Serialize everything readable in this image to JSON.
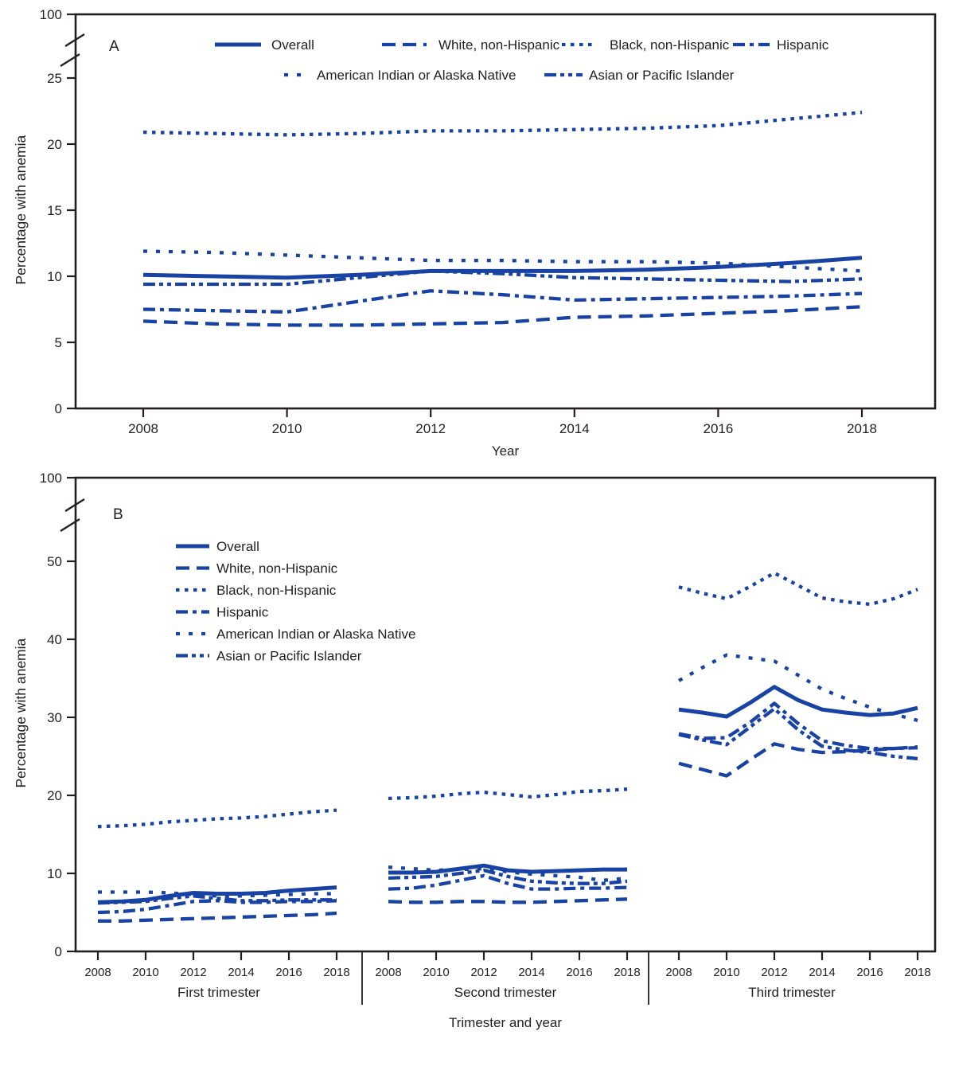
{
  "colors": {
    "line_blue": "#1843a5",
    "ink": "#231f20",
    "background": "#ffffff"
  },
  "chart_data": [
    {
      "panel_label": "A",
      "type": "line",
      "ylabel": "Percentage with anemia",
      "xlabel": "Year",
      "y_break_label": "100",
      "y_ticks": [
        25,
        20,
        15,
        10,
        5,
        0
      ],
      "x": [
        2008,
        2009,
        2010,
        2011,
        2012,
        2013,
        2014,
        2015,
        2016,
        2017,
        2018
      ],
      "x_tick_labels": [
        "2008",
        "2010",
        "2012",
        "2014",
        "2016",
        "2018"
      ],
      "legend_rows": [
        [
          0,
          1,
          2,
          3
        ],
        [
          4,
          5
        ]
      ],
      "series": [
        {
          "name": "Overall",
          "line_style": "solid",
          "values": [
            10.1,
            10.0,
            9.9,
            10.1,
            10.4,
            10.4,
            10.4,
            10.5,
            10.7,
            11.0,
            11.4
          ]
        },
        {
          "name": "White, non-Hispanic",
          "line_style": "long-dash",
          "values": [
            6.6,
            6.4,
            6.3,
            6.3,
            6.4,
            6.5,
            6.9,
            7.0,
            7.2,
            7.4,
            7.7
          ]
        },
        {
          "name": "Black, non-Hispanic",
          "line_style": "dot",
          "values": [
            20.9,
            20.8,
            20.7,
            20.8,
            21.0,
            21.0,
            21.1,
            21.2,
            21.4,
            21.9,
            22.4
          ]
        },
        {
          "name": "Hispanic",
          "line_style": "dash-dot",
          "values": [
            7.5,
            7.4,
            7.3,
            8.1,
            8.9,
            8.6,
            8.2,
            8.3,
            8.4,
            8.5,
            8.7
          ]
        },
        {
          "name": "American Indian or Alaska Native",
          "line_style": "sparse-dot",
          "values": [
            11.9,
            11.8,
            11.6,
            11.4,
            11.2,
            11.2,
            11.1,
            11.1,
            11.0,
            10.7,
            10.4
          ]
        },
        {
          "name": "Asian or Pacific Islander",
          "line_style": "dash-dot-dot",
          "values": [
            9.4,
            9.4,
            9.4,
            9.9,
            10.4,
            10.2,
            9.9,
            9.8,
            9.7,
            9.6,
            9.8
          ]
        }
      ]
    },
    {
      "panel_label": "B",
      "type": "line-grouped",
      "ylabel": "Percentage with anemia",
      "xlabel": "Trimester and year",
      "y_break_label": "100",
      "y_ticks": [
        50,
        40,
        30,
        20,
        10,
        0
      ],
      "x": [
        2008,
        2009,
        2010,
        2011,
        2012,
        2013,
        2014,
        2015,
        2016,
        2017,
        2018
      ],
      "x_tick_labels": [
        "2008",
        "2010",
        "2012",
        "2014",
        "2016",
        "2018"
      ],
      "groups": [
        {
          "label": "First trimester"
        },
        {
          "label": "Second trimester"
        },
        {
          "label": "Third trimester"
        }
      ],
      "series": [
        {
          "name": "Overall",
          "line_style": "solid",
          "values_by_group": [
            [
              6.3,
              6.4,
              6.6,
              7.1,
              7.5,
              7.4,
              7.4,
              7.5,
              7.8,
              8.0,
              8.2
            ],
            [
              10.1,
              10.1,
              10.2,
              10.6,
              11.0,
              10.4,
              10.2,
              10.3,
              10.4,
              10.5,
              10.5
            ],
            [
              31.0,
              30.6,
              30.1,
              31.9,
              33.9,
              32.2,
              31.0,
              30.6,
              30.3,
              30.5,
              31.2
            ]
          ]
        },
        {
          "name": "White, non-Hispanic",
          "line_style": "long-dash",
          "values_by_group": [
            [
              3.9,
              3.9,
              4.0,
              4.1,
              4.2,
              4.3,
              4.4,
              4.5,
              4.6,
              4.7,
              4.9
            ],
            [
              6.4,
              6.3,
              6.3,
              6.4,
              6.4,
              6.3,
              6.3,
              6.4,
              6.5,
              6.6,
              6.7
            ],
            [
              24.1,
              23.3,
              22.5,
              24.6,
              26.6,
              25.9,
              25.5,
              25.6,
              25.8,
              26.0,
              26.2
            ]
          ]
        },
        {
          "name": "Black, non-Hispanic",
          "line_style": "dot",
          "values_by_group": [
            [
              16.0,
              16.1,
              16.3,
              16.6,
              16.8,
              17.0,
              17.1,
              17.3,
              17.6,
              17.9,
              18.1
            ],
            [
              19.6,
              19.7,
              19.9,
              20.2,
              20.4,
              20.1,
              19.8,
              20.1,
              20.5,
              20.6,
              20.8
            ],
            [
              46.7,
              45.9,
              45.2,
              46.8,
              48.5,
              46.9,
              45.3,
              44.8,
              44.5,
              45.2,
              46.4
            ]
          ]
        },
        {
          "name": "Hispanic",
          "line_style": "dash-dot",
          "values_by_group": [
            [
              5.0,
              5.1,
              5.4,
              5.9,
              6.4,
              6.5,
              6.3,
              6.3,
              6.4,
              6.4,
              6.5
            ],
            [
              8.0,
              8.1,
              8.5,
              9.1,
              9.7,
              8.7,
              8.0,
              8.0,
              8.1,
              8.1,
              8.2
            ],
            [
              27.9,
              27.3,
              27.4,
              29.4,
              31.8,
              29.2,
              27.0,
              26.4,
              26.0,
              26.0,
              26.1
            ]
          ]
        },
        {
          "name": "American Indian or Alaska Native",
          "line_style": "sparse-dot",
          "values_by_group": [
            [
              7.6,
              7.6,
              7.6,
              7.5,
              7.3,
              7.1,
              7.1,
              7.2,
              7.3,
              7.4,
              7.4
            ],
            [
              10.8,
              10.6,
              10.4,
              10.5,
              10.6,
              10.2,
              9.9,
              9.7,
              9.5,
              9.1,
              9.4
            ],
            [
              34.7,
              36.4,
              38.0,
              37.6,
              37.2,
              35.4,
              33.6,
              32.4,
              31.3,
              30.4,
              29.6
            ]
          ]
        },
        {
          "name": "Asian or Pacific Islander",
          "line_style": "dash-dot-dot",
          "values_by_group": [
            [
              6.2,
              6.3,
              6.4,
              6.8,
              7.1,
              6.8,
              6.5,
              6.5,
              6.6,
              6.6,
              6.6
            ],
            [
              9.4,
              9.5,
              9.6,
              10.0,
              10.4,
              9.6,
              9.0,
              8.8,
              8.7,
              8.7,
              9.0
            ],
            [
              27.8,
              27.1,
              26.5,
              28.8,
              31.1,
              28.4,
              26.3,
              25.8,
              25.5,
              25.0,
              24.7
            ]
          ]
        }
      ]
    }
  ]
}
